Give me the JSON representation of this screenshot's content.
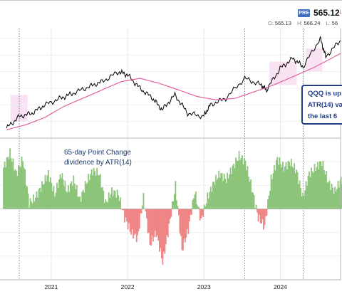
{
  "header": {
    "badge": "PRE",
    "price": "565.12",
    "price_arrow": "↓",
    "ohlc": {
      "o_label": "O:",
      "o_value": "565.13",
      "h_label": "H:",
      "h_value": "566.24",
      "l_label": "L:",
      "l_value": "56"
    }
  },
  "annotation": {
    "line1": "QQQ is up",
    "line2": "ATR(14) va",
    "line3": "the last 6"
  },
  "indicator_label": {
    "line1": "65-day Point Change",
    "line2": "dividence by ATR(14)"
  },
  "chart_data": [
    {
      "type": "line",
      "panel": "price",
      "x_type": "date",
      "xlim": [
        "2020-05-01",
        "2024-10-15"
      ],
      "grid": true,
      "series": [
        {
          "color": "#000000",
          "x": [
            "2020-06-01",
            "2020-08-01",
            "2020-10-01",
            "2020-12-01",
            "2021-02-15",
            "2021-04-15",
            "2021-07-01",
            "2021-09-01",
            "2021-11-20",
            "2022-01-01",
            "2022-03-01",
            "2022-05-01",
            "2022-06-15",
            "2022-08-15",
            "2022-10-15",
            "2022-12-28",
            "2023-02-01",
            "2023-04-15",
            "2023-07-15",
            "2023-09-30",
            "2023-10-27",
            "2023-12-31",
            "2024-03-01",
            "2024-04-19",
            "2024-07-10",
            "2024-08-05",
            "2024-10-15"
          ],
          "y": [
            230,
            265,
            275,
            300,
            320,
            335,
            355,
            370,
            400,
            390,
            350,
            320,
            285,
            330,
            275,
            265,
            300,
            320,
            380,
            360,
            345,
            410,
            440,
            415,
            500,
            445,
            495
          ]
        },
        {
          "color": "#e0549a",
          "x": [
            "2020-06-01",
            "2020-09-01",
            "2020-12-01",
            "2021-03-01",
            "2021-06-01",
            "2021-09-01",
            "2021-12-01",
            "2022-03-01",
            "2022-06-01",
            "2022-09-01",
            "2022-12-01",
            "2023-03-01",
            "2023-06-01",
            "2023-09-01",
            "2023-12-01",
            "2024-03-01",
            "2024-06-01",
            "2024-09-01",
            "2024-10-15"
          ],
          "y": [
            225,
            240,
            262,
            295,
            320,
            345,
            370,
            380,
            365,
            345,
            325,
            315,
            320,
            340,
            360,
            385,
            410,
            440,
            455
          ]
        }
      ]
    },
    {
      "type": "bar",
      "panel": "indicator",
      "x_type": "date",
      "xlim": [
        "2020-05-01",
        "2024-10-15"
      ],
      "x_tick_labels": [
        "2021",
        "2022",
        "2023",
        "2024"
      ],
      "positive_color": "#8cc47a",
      "negative_color": "#ef8585",
      "x": [
        "2020-05-15",
        "2020-06-15",
        "2020-07-15",
        "2020-08-15",
        "2020-09-15",
        "2020-10-15",
        "2020-11-15",
        "2020-12-15",
        "2021-01-15",
        "2021-02-15",
        "2021-03-15",
        "2021-04-15",
        "2021-05-15",
        "2021-06-15",
        "2021-07-15",
        "2021-08-15",
        "2021-09-15",
        "2021-10-15",
        "2021-11-15",
        "2021-12-15",
        "2022-01-15",
        "2022-02-15",
        "2022-03-15",
        "2022-04-15",
        "2022-05-15",
        "2022-06-15",
        "2022-07-15",
        "2022-08-15",
        "2022-09-15",
        "2022-10-15",
        "2022-11-15",
        "2022-12-15",
        "2023-01-15",
        "2023-02-15",
        "2023-03-15",
        "2023-04-15",
        "2023-05-15",
        "2023-06-15",
        "2023-07-15",
        "2023-08-15",
        "2023-09-15",
        "2023-10-15",
        "2023-11-15",
        "2023-12-15",
        "2024-01-15",
        "2024-02-15",
        "2024-03-15",
        "2024-04-15",
        "2024-05-15",
        "2024-06-15",
        "2024-07-15",
        "2024-08-15",
        "2024-09-15",
        "2024-10-15"
      ],
      "values": [
        7,
        9.5,
        6,
        8.5,
        1,
        2,
        4,
        6,
        2.5,
        6,
        3,
        5,
        1.5,
        4.5,
        6.5,
        6,
        1,
        3,
        2.5,
        -1.5,
        -4,
        -5,
        2,
        -6,
        -4,
        -9,
        -3,
        4,
        -7,
        -3.5,
        3,
        -2,
        2,
        4.5,
        6,
        5,
        7,
        9,
        8,
        3.5,
        -1.5,
        -3,
        5,
        8.5,
        7,
        8,
        6.5,
        2,
        6,
        7,
        8,
        4.5,
        3,
        5
      ]
    }
  ]
}
